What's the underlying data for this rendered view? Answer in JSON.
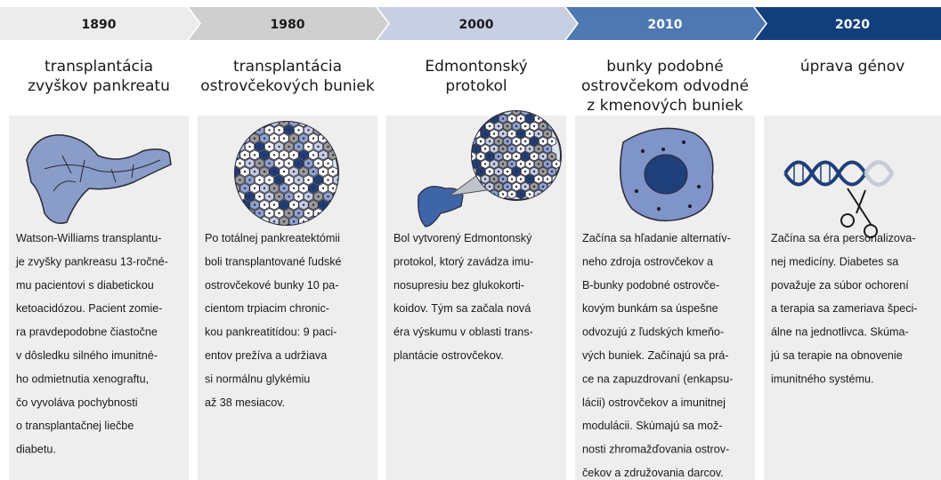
{
  "columns": [
    {
      "year": "1890",
      "title": [
        "transplantácia",
        "zvyškov pankreatu"
      ],
      "text": [
        "Watson-Williams transplantu-",
        "je zvyšky pankreasu 13-ročné-",
        "mu pacientovi s diabetickou",
        "ketoacidózou. Pacient zomie-",
        "ra pravdepodobne čiastočne",
        "v dôsledku silného imunitné-",
        "ho odmietnutia xenograftu,",
        "čo vyvoláva pochybnosti",
        "o transplantačnej liečbe",
        "diabetu."
      ]
    },
    {
      "year": "1980",
      "title": [
        "transplantácia",
        "ostrovčekových buniek"
      ],
      "text": [
        "Po totálnej pankreatektómii",
        "boli transplantované ľudské",
        "ostrovčekové bunky 10 pa-",
        "cientom trpiacim chronic-",
        "kou pankreatitídou: 9 paci-",
        "entov prežíva a udržiava",
        "si normálnu glykémiu",
        "až 38 mesiacov."
      ]
    },
    {
      "year": "2000",
      "title": [
        "Edmontonský",
        "protokol"
      ],
      "text": [
        "Bol vytvorený Edmontonský",
        "protokol, ktorý zavádza imu-",
        "nosupresiu bez glukokorti-",
        "koidov. Tým sa začala nová",
        "éra výskumu v oblasti trans-",
        "plantácie ostrovčekov."
      ]
    },
    {
      "year": "2010",
      "title": [
        "bunky podobné",
        "ostrovčekom odvodné",
        "z kmenových buniek"
      ],
      "text": [
        "Začína sa hľadanie alternatív-",
        "neho zdroja ostrovčekov a",
        "B-bunky podobné ostrovče-",
        "kovým bunkám sa úspešne",
        "odvozujú z ľudských kmeňo-",
        "vých buniek. Začínajú sa prá-",
        "ce na zapuzdrovaní (enkapsu-",
        "lácii) ostrovčekov a imunitnej",
        "modulácii. Skúmajú sa mož-",
        "nosti zhromažďovania ostrov-",
        "čekov a združovania darcov."
      ]
    },
    {
      "year": "2020",
      "title": [
        "úprava génov"
      ],
      "text": [
        "Začína sa éra personalizova-",
        "nej medicíny. Diabetes sa",
        "považuje za súbor ochorení",
        "a terapia sa zameriava špeci-",
        "álne na jednotlivca. Skúma-",
        "jú sa terapie na obnovenie",
        "imunitného systému."
      ]
    }
  ]
}
